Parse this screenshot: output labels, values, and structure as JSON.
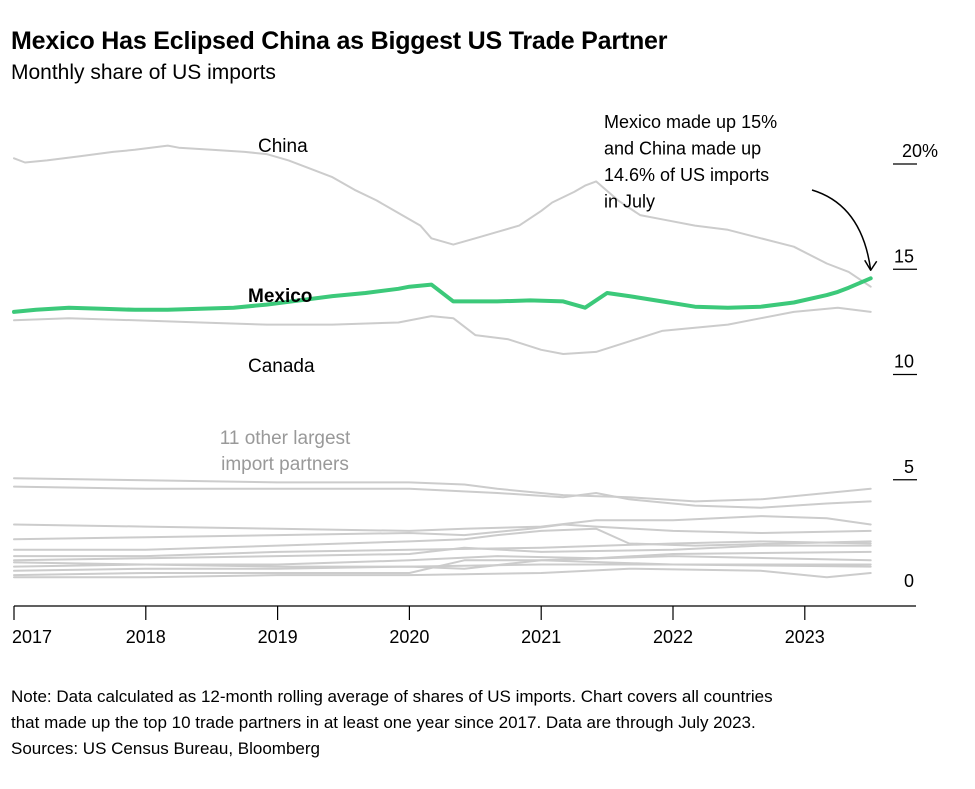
{
  "title": "Mexico Has Eclipsed China as Biggest US Trade Partner",
  "subtitle": "Monthly share of US imports",
  "note_lines": [
    "Note: Data calculated as 12-month rolling average of shares of US imports. Chart covers all countries",
    "that made up the top 10 trade partners in at least one year since 2017. Data are through July 2023.",
    "Sources: US Census Bureau, Bloomberg"
  ],
  "colors": {
    "highlight": "#3cc97a",
    "muted": "#cccccc",
    "axis": "#000000",
    "label_muted": "#999999"
  },
  "chart_data": {
    "type": "line",
    "x_tick_labels": [
      "2017",
      "2018",
      "2019",
      "2020",
      "2021",
      "2022",
      "2023"
    ],
    "y_ticks": [
      0,
      5,
      10,
      15,
      20
    ],
    "y_tick_labels": [
      "0",
      "5",
      "10",
      "15",
      "20%"
    ],
    "ylim": [
      0,
      20.5
    ],
    "grid": false,
    "series": [
      {
        "name": "China",
        "highlight": false,
        "points": [
          [
            "2017-01",
            20.7
          ],
          [
            "2017-02",
            20.5
          ],
          [
            "2017-04",
            20.6
          ],
          [
            "2017-07",
            20.8
          ],
          [
            "2017-10",
            21.0
          ],
          [
            "2017-12",
            21.1
          ],
          [
            "2018-03",
            21.3
          ],
          [
            "2018-04",
            21.2
          ],
          [
            "2018-07",
            21.1
          ],
          [
            "2018-10",
            21.0
          ],
          [
            "2018-12",
            20.9
          ],
          [
            "2019-02",
            20.6
          ],
          [
            "2019-04",
            20.2
          ],
          [
            "2019-06",
            19.8
          ],
          [
            "2019-08",
            19.2
          ],
          [
            "2019-10",
            18.7
          ],
          [
            "2019-12",
            18.1
          ],
          [
            "2020-02",
            17.5
          ],
          [
            "2020-03",
            16.9
          ],
          [
            "2020-05",
            16.6
          ],
          [
            "2020-07",
            16.9
          ],
          [
            "2020-09",
            17.2
          ],
          [
            "2020-11",
            17.5
          ],
          [
            "2021-01",
            18.2
          ],
          [
            "2021-02",
            18.6
          ],
          [
            "2021-04",
            19.1
          ],
          [
            "2021-05",
            19.4
          ],
          [
            "2021-06",
            19.6
          ],
          [
            "2021-08",
            18.7
          ],
          [
            "2021-10",
            18.0
          ],
          [
            "2021-12",
            17.8
          ],
          [
            "2022-03",
            17.5
          ],
          [
            "2022-06",
            17.3
          ],
          [
            "2022-09",
            16.9
          ],
          [
            "2022-12",
            16.5
          ],
          [
            "2023-03",
            15.7
          ],
          [
            "2023-05",
            15.3
          ],
          [
            "2023-07",
            14.6
          ]
        ]
      },
      {
        "name": "Mexico",
        "highlight": true,
        "points": [
          [
            "2017-01",
            13.4
          ],
          [
            "2017-03",
            13.5
          ],
          [
            "2017-06",
            13.6
          ],
          [
            "2017-09",
            13.55
          ],
          [
            "2017-12",
            13.5
          ],
          [
            "2018-03",
            13.5
          ],
          [
            "2018-06",
            13.55
          ],
          [
            "2018-09",
            13.6
          ],
          [
            "2018-12",
            13.75
          ],
          [
            "2019-03",
            13.95
          ],
          [
            "2019-06",
            14.15
          ],
          [
            "2019-09",
            14.3
          ],
          [
            "2019-12",
            14.5
          ],
          [
            "2020-01",
            14.6
          ],
          [
            "2020-03",
            14.7
          ],
          [
            "2020-05",
            13.9
          ],
          [
            "2020-07",
            13.9
          ],
          [
            "2020-09",
            13.9
          ],
          [
            "2020-12",
            13.95
          ],
          [
            "2021-03",
            13.9
          ],
          [
            "2021-05",
            13.6
          ],
          [
            "2021-07",
            14.3
          ],
          [
            "2021-09",
            14.15
          ],
          [
            "2021-12",
            13.9
          ],
          [
            "2022-03",
            13.65
          ],
          [
            "2022-06",
            13.6
          ],
          [
            "2022-09",
            13.65
          ],
          [
            "2022-12",
            13.85
          ],
          [
            "2023-03",
            14.2
          ],
          [
            "2023-04",
            14.35
          ],
          [
            "2023-05",
            14.55
          ],
          [
            "2023-07",
            15.0
          ]
        ]
      },
      {
        "name": "Canada",
        "highlight": false,
        "points": [
          [
            "2017-01",
            13.0
          ],
          [
            "2017-06",
            13.1
          ],
          [
            "2017-12",
            13.0
          ],
          [
            "2018-06",
            12.9
          ],
          [
            "2018-12",
            12.8
          ],
          [
            "2019-06",
            12.8
          ],
          [
            "2019-12",
            12.9
          ],
          [
            "2020-03",
            13.2
          ],
          [
            "2020-05",
            13.1
          ],
          [
            "2020-07",
            12.3
          ],
          [
            "2020-10",
            12.1
          ],
          [
            "2021-01",
            11.6
          ],
          [
            "2021-03",
            11.4
          ],
          [
            "2021-06",
            11.5
          ],
          [
            "2021-09",
            12.0
          ],
          [
            "2021-12",
            12.5
          ],
          [
            "2022-06",
            12.8
          ],
          [
            "2022-09",
            13.1
          ],
          [
            "2022-12",
            13.4
          ],
          [
            "2023-04",
            13.6
          ],
          [
            "2023-07",
            13.4
          ]
        ]
      },
      {
        "points": [
          [
            "2017-01",
            5.5
          ],
          [
            "2018-01",
            5.4
          ],
          [
            "2019-01",
            5.3
          ],
          [
            "2020-01",
            5.3
          ],
          [
            "2020-06",
            5.2
          ],
          [
            "2020-09",
            5.0
          ],
          [
            "2021-03",
            4.7
          ],
          [
            "2021-09",
            4.6
          ],
          [
            "2022-03",
            4.4
          ],
          [
            "2022-09",
            4.5
          ],
          [
            "2023-03",
            4.8
          ],
          [
            "2023-07",
            5.0
          ]
        ]
      },
      {
        "points": [
          [
            "2017-01",
            5.1
          ],
          [
            "2018-01",
            5.0
          ],
          [
            "2019-01",
            5.0
          ],
          [
            "2020-01",
            5.0
          ],
          [
            "2020-09",
            4.8
          ],
          [
            "2021-03",
            4.6
          ],
          [
            "2021-06",
            4.8
          ],
          [
            "2021-09",
            4.5
          ],
          [
            "2022-03",
            4.2
          ],
          [
            "2022-09",
            4.1
          ],
          [
            "2023-03",
            4.3
          ],
          [
            "2023-07",
            4.4
          ]
        ]
      },
      {
        "points": [
          [
            "2017-01",
            3.3
          ],
          [
            "2018-01",
            3.2
          ],
          [
            "2019-01",
            3.1
          ],
          [
            "2020-01",
            3.0
          ],
          [
            "2020-06",
            3.1
          ],
          [
            "2021-01",
            3.2
          ],
          [
            "2021-06",
            3.5
          ],
          [
            "2022-01",
            3.5
          ],
          [
            "2022-09",
            3.7
          ],
          [
            "2023-03",
            3.6
          ],
          [
            "2023-07",
            3.3
          ]
        ]
      },
      {
        "points": [
          [
            "2017-01",
            2.6
          ],
          [
            "2018-01",
            2.7
          ],
          [
            "2019-01",
            2.8
          ],
          [
            "2020-01",
            2.9
          ],
          [
            "2020-06",
            2.8
          ],
          [
            "2020-12",
            3.1
          ],
          [
            "2021-03",
            3.3
          ],
          [
            "2021-06",
            3.2
          ],
          [
            "2022-01",
            3.0
          ],
          [
            "2022-09",
            2.9
          ],
          [
            "2023-07",
            3.0
          ]
        ]
      },
      {
        "points": [
          [
            "2017-01",
            2.1
          ],
          [
            "2018-01",
            2.1
          ],
          [
            "2019-01",
            2.3
          ],
          [
            "2020-01",
            2.5
          ],
          [
            "2020-06",
            2.6
          ],
          [
            "2020-09",
            2.8
          ],
          [
            "2021-01",
            3.0
          ],
          [
            "2021-06",
            3.1
          ],
          [
            "2021-09",
            2.4
          ],
          [
            "2022-03",
            2.3
          ],
          [
            "2023-07",
            2.5
          ]
        ]
      },
      {
        "points": [
          [
            "2017-01",
            1.8
          ],
          [
            "2018-01",
            1.8
          ],
          [
            "2019-01",
            2.0
          ],
          [
            "2020-01",
            2.1
          ],
          [
            "2021-01",
            2.2
          ],
          [
            "2022-01",
            2.4
          ],
          [
            "2022-09",
            2.5
          ],
          [
            "2023-07",
            2.4
          ]
        ]
      },
      {
        "points": [
          [
            "2017-01",
            1.6
          ],
          [
            "2018-01",
            1.7
          ],
          [
            "2019-01",
            1.8
          ],
          [
            "2020-01",
            1.9
          ],
          [
            "2020-06",
            2.2
          ],
          [
            "2021-01",
            2.0
          ],
          [
            "2022-01",
            2.1
          ],
          [
            "2022-09",
            2.3
          ],
          [
            "2023-07",
            2.3
          ]
        ]
      },
      {
        "points": [
          [
            "2017-01",
            1.3
          ],
          [
            "2018-01",
            1.4
          ],
          [
            "2019-01",
            1.4
          ],
          [
            "2020-01",
            1.6
          ],
          [
            "2020-09",
            1.8
          ],
          [
            "2021-06",
            1.7
          ],
          [
            "2022-01",
            1.9
          ],
          [
            "2023-07",
            2.0
          ]
        ]
      },
      {
        "points": [
          [
            "2017-01",
            1.1
          ],
          [
            "2018-01",
            1.2
          ],
          [
            "2019-01",
            1.2
          ],
          [
            "2020-01",
            1.3
          ],
          [
            "2020-06",
            1.2
          ],
          [
            "2021-01",
            1.6
          ],
          [
            "2022-01",
            1.8
          ],
          [
            "2023-07",
            1.6
          ]
        ]
      },
      {
        "points": [
          [
            "2017-01",
            0.9
          ],
          [
            "2018-01",
            1.0
          ],
          [
            "2019-01",
            1.0
          ],
          [
            "2020-01",
            1.0
          ],
          [
            "2020-06",
            1.6
          ],
          [
            "2021-01",
            1.6
          ],
          [
            "2022-01",
            1.4
          ],
          [
            "2023-07",
            1.3
          ]
        ]
      },
      {
        "points": [
          [
            "2017-01",
            0.8
          ],
          [
            "2018-01",
            0.8
          ],
          [
            "2019-01",
            0.9
          ],
          [
            "2020-01",
            0.9
          ],
          [
            "2021-01",
            1.0
          ],
          [
            "2021-09",
            1.2
          ],
          [
            "2022-09",
            1.1
          ],
          [
            "2023-03",
            0.8
          ],
          [
            "2023-07",
            1.0
          ]
        ]
      },
      {
        "points": [
          [
            "2017-01",
            1.5
          ],
          [
            "2018-01",
            1.4
          ],
          [
            "2019-01",
            1.3
          ],
          [
            "2020-01",
            1.3
          ],
          [
            "2021-01",
            1.4
          ],
          [
            "2022-01",
            1.4
          ],
          [
            "2023-07",
            1.4
          ]
        ]
      }
    ],
    "series_labels": [
      {
        "text": "China",
        "bold": false
      },
      {
        "text": "Mexico",
        "bold": true
      },
      {
        "text": "Canada",
        "bold": false
      },
      {
        "text": "11 other largest",
        "muted": true
      },
      {
        "text": "import partners",
        "muted": true
      }
    ],
    "annotation": {
      "lines": [
        "Mexico made up 15%",
        "and China made up",
        "14.6% of US imports",
        "in July"
      ],
      "target_date": "2023-07",
      "target_value": 15.0
    }
  }
}
